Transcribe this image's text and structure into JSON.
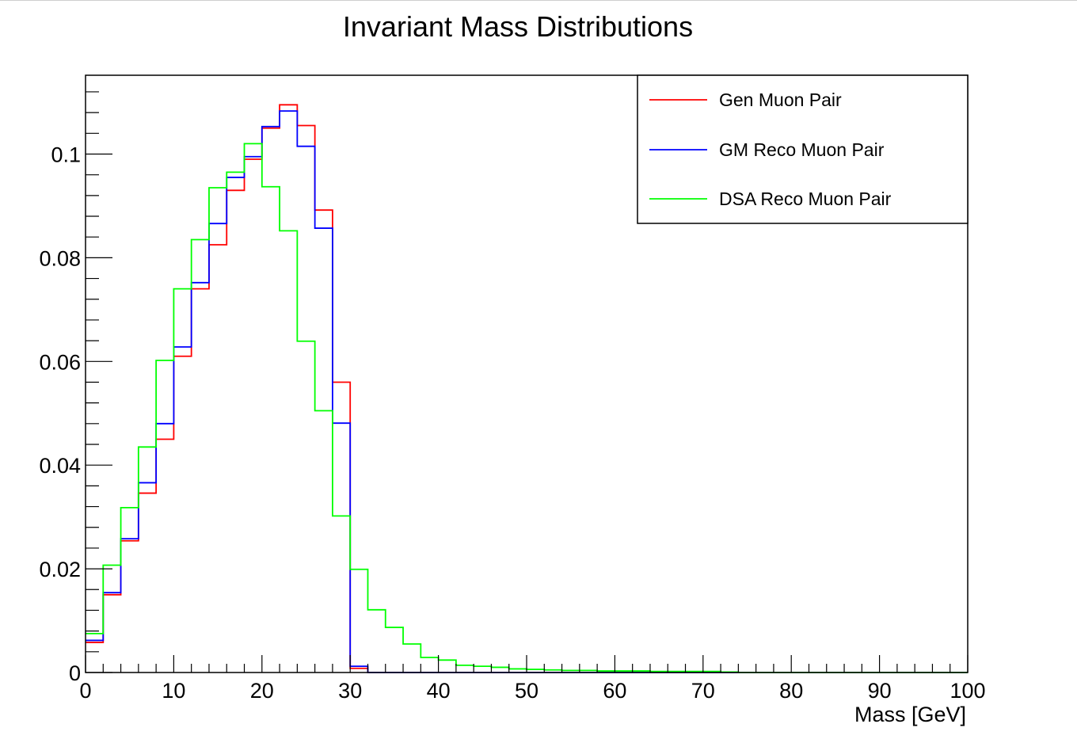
{
  "chart_data": {
    "type": "histogram-step",
    "title": "Invariant Mass Distributions",
    "xlabel": "Mass [GeV]",
    "ylabel": "",
    "xlim": [
      0,
      100
    ],
    "ylim": [
      0,
      0.1152
    ],
    "bin_width": 2,
    "x_ticks": [
      0,
      10,
      20,
      30,
      40,
      50,
      60,
      70,
      80,
      90,
      100
    ],
    "y_ticks": [
      0,
      0.02,
      0.04,
      0.06,
      0.08,
      0.1
    ],
    "x_tick_labels": [
      "0",
      "10",
      "20",
      "30",
      "40",
      "50",
      "60",
      "70",
      "80",
      "90",
      "100"
    ],
    "y_tick_labels": [
      "0",
      "0.02",
      "0.04",
      "0.06",
      "0.08",
      "0.1"
    ],
    "grid": false,
    "legend_position": "top-right",
    "series": [
      {
        "name": "Gen Muon Pair",
        "color": "#ff0000",
        "values": [
          0.0058,
          0.015,
          0.0254,
          0.0346,
          0.045,
          0.061,
          0.074,
          0.0825,
          0.093,
          0.099,
          0.105,
          0.1095,
          0.1055,
          0.0892,
          0.056,
          0.0008,
          0,
          0,
          0,
          0,
          0,
          0,
          0,
          0,
          0,
          0,
          0,
          0,
          0,
          0,
          0,
          0,
          0,
          0,
          0,
          0,
          0,
          0,
          0,
          0,
          0,
          0,
          0,
          0,
          0,
          0,
          0,
          0,
          0,
          0
        ]
      },
      {
        "name": "GM Reco Muon Pair",
        "color": "#0000ff",
        "values": [
          0.0062,
          0.0154,
          0.0258,
          0.0366,
          0.048,
          0.0628,
          0.0752,
          0.0866,
          0.0955,
          0.0995,
          0.1053,
          0.1083,
          0.1015,
          0.0857,
          0.0481,
          0.0012,
          0,
          0,
          0,
          0,
          0,
          0,
          0,
          0,
          0,
          0,
          0,
          0,
          0,
          0,
          0,
          0,
          0,
          0,
          0,
          0,
          0,
          0,
          0,
          0,
          0,
          0,
          0,
          0,
          0,
          0,
          0,
          0,
          0,
          0
        ]
      },
      {
        "name": "DSA Reco Muon Pair",
        "color": "#00ff00",
        "values": [
          0.0075,
          0.0207,
          0.0318,
          0.0435,
          0.0602,
          0.074,
          0.0835,
          0.0935,
          0.0965,
          0.102,
          0.0937,
          0.0852,
          0.0639,
          0.0505,
          0.0302,
          0.0199,
          0.0121,
          0.0087,
          0.0055,
          0.0029,
          0.0024,
          0.0014,
          0.0012,
          0.001,
          0.0007,
          0.0006,
          0.0005,
          0.0004,
          0.0004,
          0.0003,
          0.0003,
          0.0003,
          0.0002,
          0.0002,
          0.0002,
          0.0002,
          0.0001,
          0,
          0,
          0,
          0,
          0,
          0,
          0,
          0,
          0,
          0,
          0,
          0,
          0
        ]
      }
    ]
  }
}
